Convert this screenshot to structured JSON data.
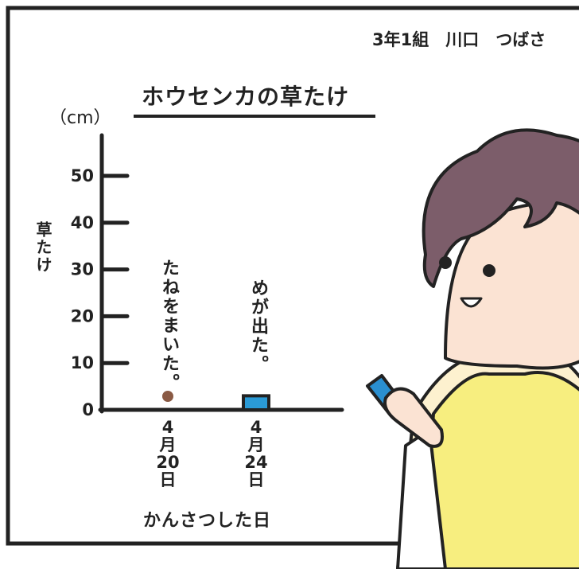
{
  "chart_data": {
    "type": "bar",
    "title": "ホウセンカの草たけ",
    "subtitle": "3年1組　川口　つばさ",
    "y_unit": "（cm）",
    "y_label": "草たけ",
    "x_label": "かんさつした日",
    "annotations": [
      "たねをまいた。",
      "めが出た。"
    ],
    "categories": [
      "4月20日",
      "4月24日"
    ],
    "values": [
      null,
      3
    ],
    "color": "#2a9ad6",
    "ylim": [
      0,
      58
    ],
    "yticks": [
      0,
      10,
      20,
      30,
      40,
      50
    ]
  }
}
